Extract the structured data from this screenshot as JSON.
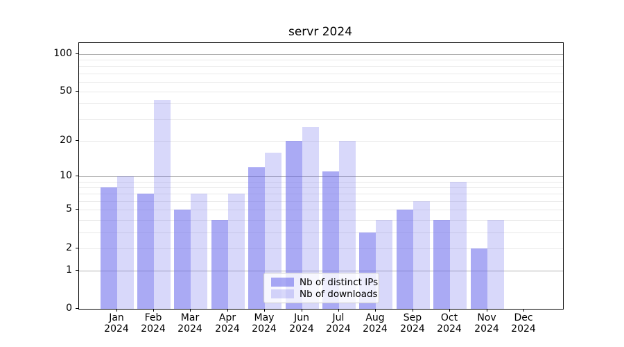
{
  "title": "servr 2024",
  "chart_data": {
    "type": "bar",
    "title": "servr 2024",
    "xlabel": "",
    "ylabel": "",
    "y_scale": "log1p",
    "categories": [
      "Jan",
      "Feb",
      "Mar",
      "Apr",
      "May",
      "Jun",
      "Jul",
      "Aug",
      "Sep",
      "Oct",
      "Nov",
      "Dec"
    ],
    "year": "2024",
    "series": [
      {
        "name": "Nb of distinct IPs",
        "color": "rgba(100,100,235,0.55)",
        "values": [
          8,
          7,
          5,
          4,
          12,
          20,
          11,
          3,
          5,
          4,
          2,
          0
        ]
      },
      {
        "name": "Nb of downloads",
        "color": "rgba(100,100,235,0.25)",
        "values": [
          10,
          43,
          7,
          7,
          16,
          26,
          20,
          4,
          6,
          9,
          4,
          0
        ]
      }
    ],
    "y_ticks": [
      0,
      1,
      2,
      5,
      10,
      20,
      50,
      100
    ],
    "major_gridlines": [
      1,
      10,
      100
    ],
    "minor_gridlines": [
      2,
      3,
      4,
      5,
      6,
      7,
      8,
      9,
      20,
      30,
      40,
      50,
      60,
      70,
      80,
      90
    ],
    "ylim": [
      0,
      122
    ],
    "legend_position": "lower center",
    "grid": "on",
    "colors": {
      "major_grid": "#b0b0b0",
      "minor_grid": "#e8e8e8",
      "spine": "#000000",
      "background": "#ffffff"
    }
  }
}
